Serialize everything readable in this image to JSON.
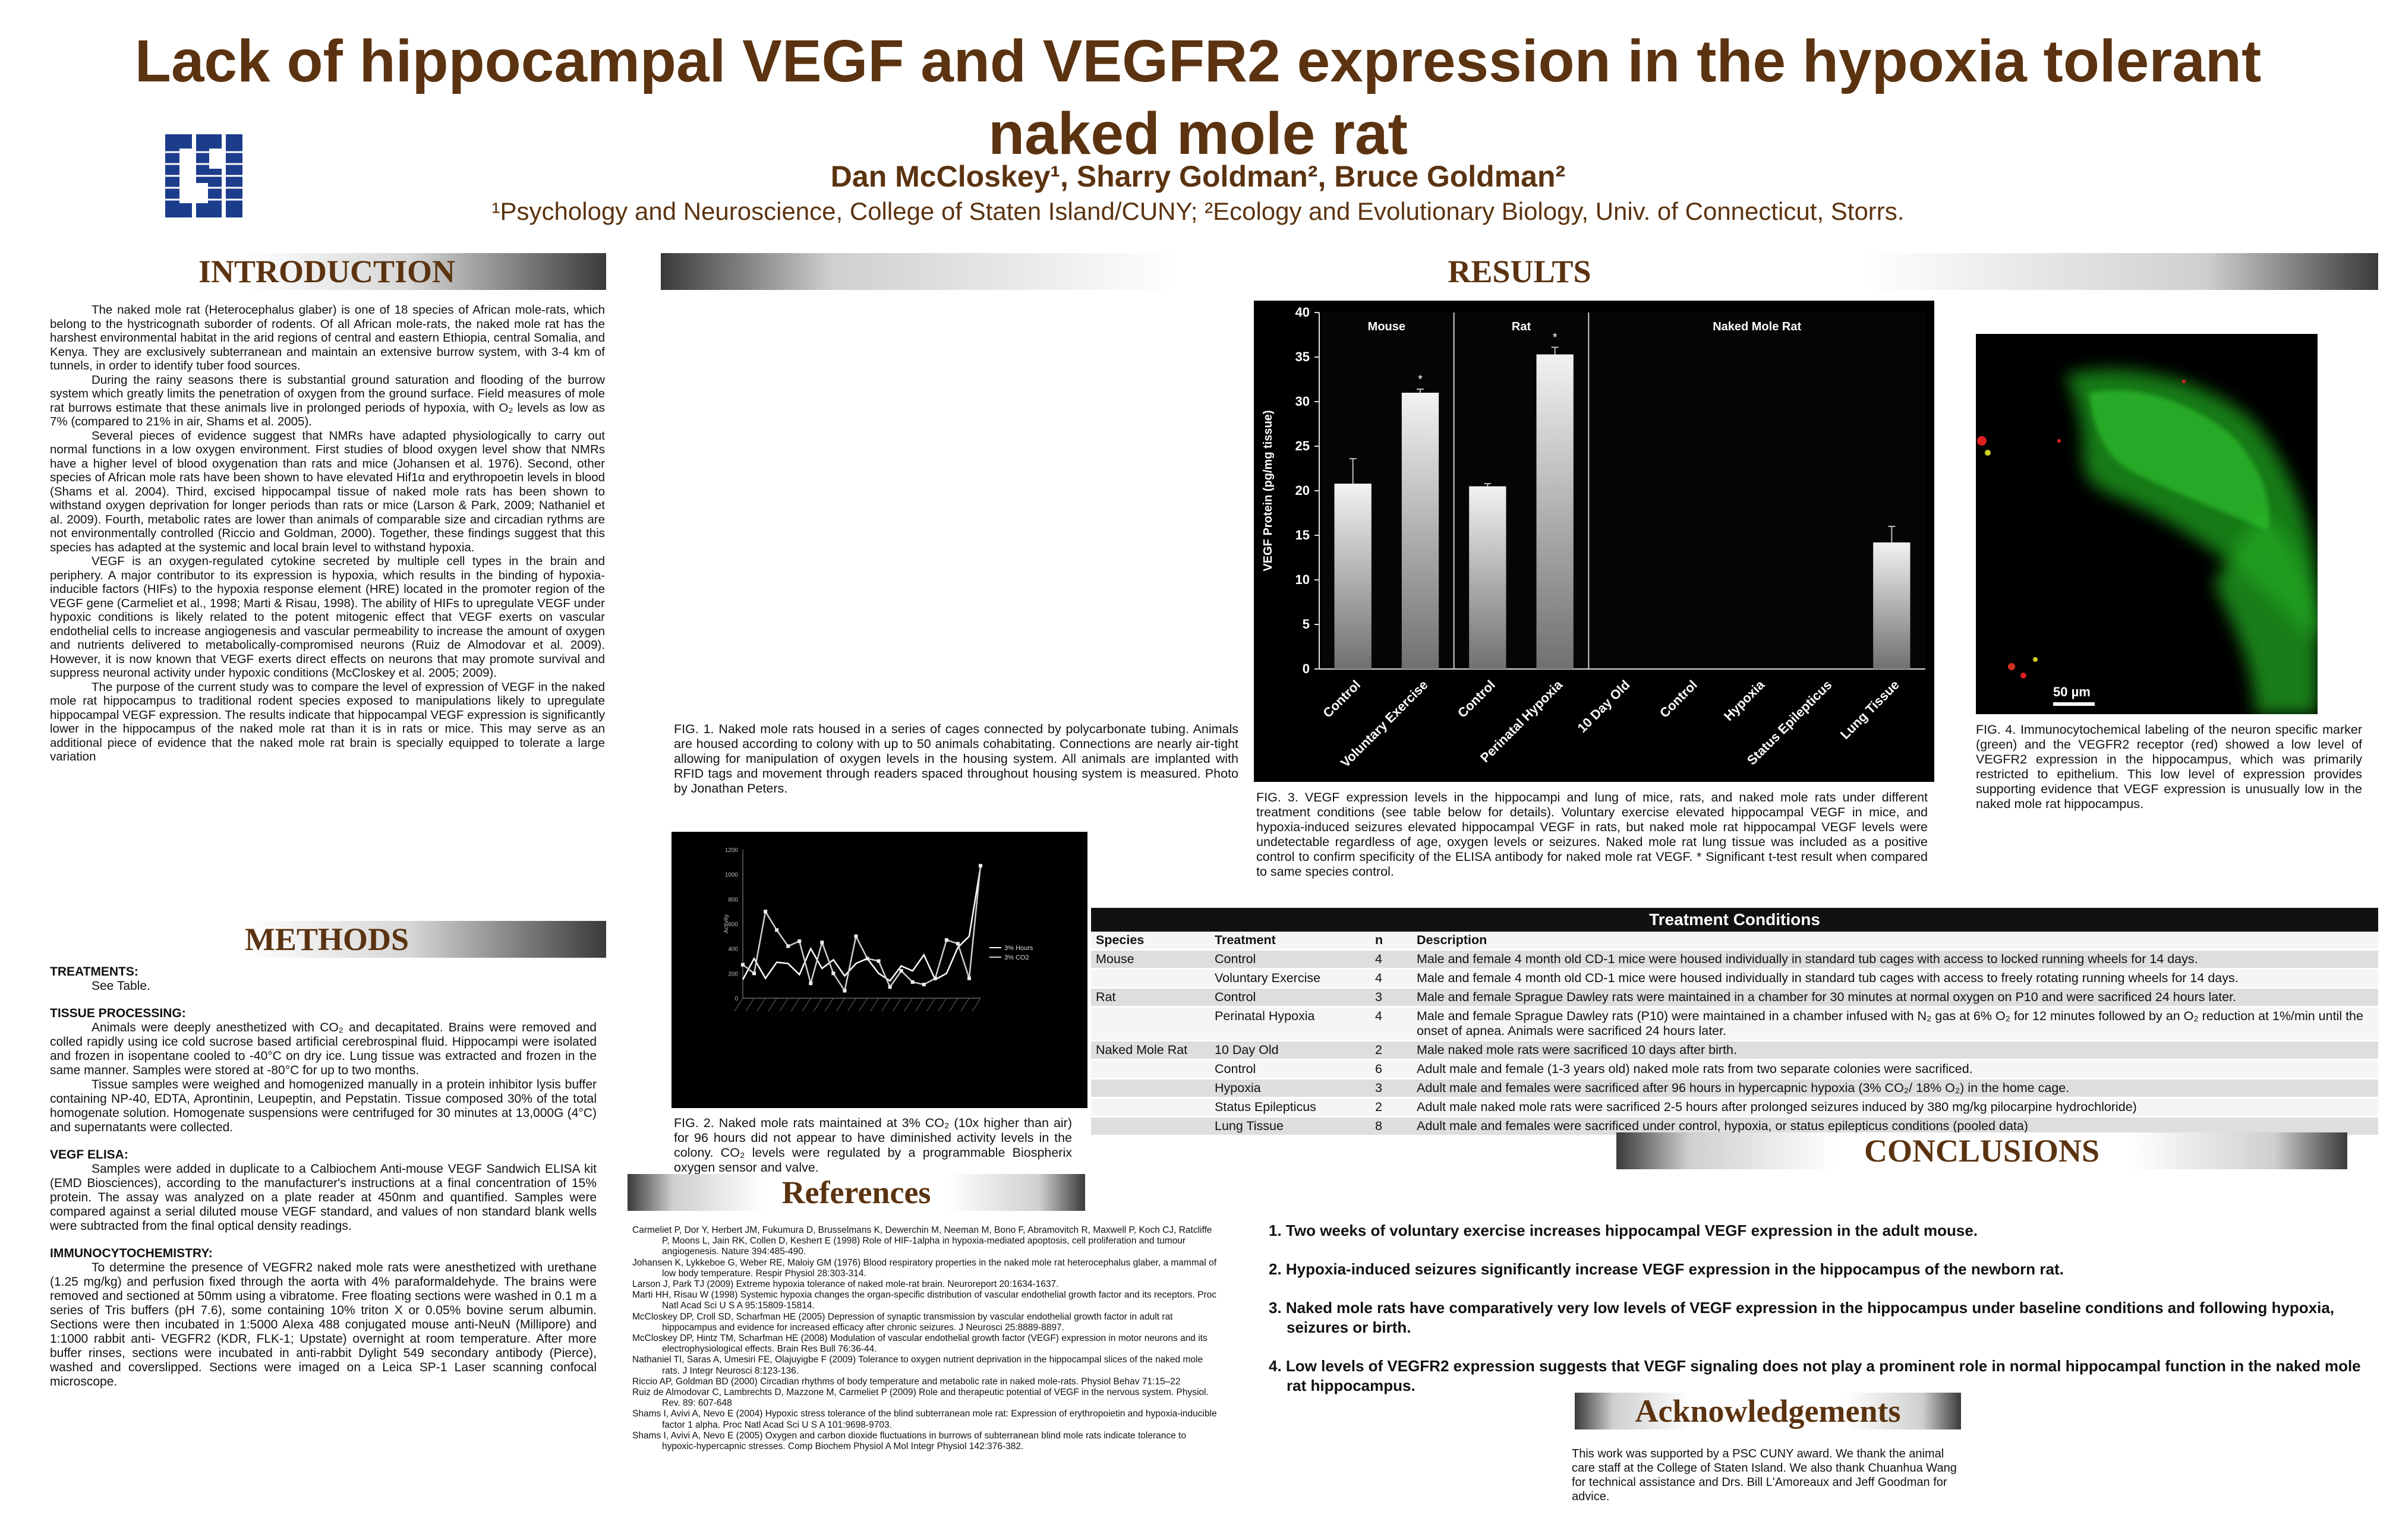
{
  "header": {
    "title_line1": "Lack of hippocampal VEGF and VEGFR2 expression in the hypoxia tolerant",
    "title_line2": "naked mole rat",
    "authors": "Dan McCloskey¹, Sharry Goldman², Bruce Goldman²",
    "affiliation": "¹Psychology and Neuroscience, College of Staten Island/CUNY; ²Ecology and Evolutionary Biology, Univ. of Connecticut, Storrs.",
    "logo_text": "CSI"
  },
  "sections": {
    "introduction": "INTRODUCTION",
    "methods": "METHODS",
    "results": "RESULTS",
    "references": "References",
    "conclusions": "CONCLUSIONS",
    "acknowledgements": "Acknowledgements"
  },
  "introduction": {
    "p1": "The naked mole rat (Heterocephalus glaber) is one of 18 species of African mole-rats, which belong to the hystricognath suborder of rodents. Of all African mole-rats, the naked mole rat has the harshest environmental habitat in the arid regions of central and eastern Ethiopia, central Somalia, and Kenya. They are exclusively subterranean and maintain an extensive burrow system, with 3-4 km of tunnels, in order to identify tuber food sources.",
    "p2": "During the rainy seasons there is substantial ground saturation and flooding of the burrow system which greatly limits the penetration of oxygen from the ground surface. Field measures of mole rat burrows estimate that these animals live in prolonged periods of hypoxia, with O₂ levels as low as 7% (compared to 21% in air, Shams et al. 2005).",
    "p3": "Several pieces of evidence suggest that NMRs have adapted physiologically to carry out normal functions in a low oxygen environment. First studies of blood oxygen level show that NMRs have a higher level of blood oxygenation than rats and mice (Johansen et al. 1976). Second, other species of African mole rats have been shown to have elevated Hif1α and erythropoetin levels in blood (Shams et al. 2004). Third, excised hippocampal tissue of naked mole rats has been shown to withstand oxygen deprivation for longer periods than rats or mice (Larson & Park, 2009; Nathaniel et al. 2009). Fourth, metabolic rates are lower than animals of comparable size and circadian rythms are not environmentally controlled (Riccio and Goldman, 2000). Together, these findings suggest that this species has adapted at the systemic and local brain level to withstand hypoxia.",
    "p4": "VEGF is an oxygen-regulated cytokine secreted by multiple cell types in the brain and periphery. A major contributor to its expression is hypoxia, which results in the binding of hypoxia-inducible factors (HIFs) to the hypoxia response element (HRE) located in the promoter region of the VEGF gene (Carmeliet et al., 1998; Marti & Risau, 1998). The ability of HIFs to upregulate VEGF under hypoxic conditions is likely related to the potent mitogenic effect that VEGF exerts on vascular endothelial cells to increase angiogenesis and vascular permeability to increase the amount of oxygen and nutrients delivered to metabolically-compromised neurons (Ruiz de Almodovar et al. 2009). However, it is now known that VEGF exerts direct effects on neurons that may promote survival and suppress neuronal activity under hypoxic conditions (McCloskey et al. 2005; 2009).",
    "p5": "The purpose of the current study was to compare the level of expression of VEGF in the naked mole rat hippocampus to traditional rodent species exposed to manipulations likely to upregulate hippocampal VEGF expression. The results indicate that hippocampal VEGF expression is significantly lower in the hippocampus of the naked mole rat than it is in rats or mice. This may serve as an additional piece of evidence that the naked mole rat brain is specially equipped to tolerate a large variation"
  },
  "methods": {
    "treat_h": "TREATMENTS:",
    "treat_p": "See Table.",
    "tissue_h": "TISSUE PROCESSING:",
    "tissue_p1": "Animals were deeply anesthetized with CO₂ and decapitated. Brains were removed and colled rapidly using ice cold sucrose based artificial cerebrospinal fluid. Hippocampi were isolated and frozen in isopentane cooled to -40°C on dry ice. Lung tissue was extracted and frozen in the same manner. Samples were stored at -80°C for up to two months.",
    "tissue_p2": "Tissue samples were weighed and homogenized manually in a protein inhibitor lysis buffer containing NP-40, EDTA, Aprontinin, Leupeptin, and Pepstatin. Tissue composed 30% of the total homogenate solution. Homogenate suspensions were centrifuged for 30 minutes at 13,000G (4°C) and supernatants were collected.",
    "elisa_h": "VEGF ELISA:",
    "elisa_p": "Samples were added in duplicate to a Calbiochem Anti-mouse VEGF Sandwich ELISA kit (EMD Biosciences), according to the manufacturer's instructions at a final concentration of 15% protein. The assay was analyzed on a plate reader at 450nm and quantified. Samples were compared against a serial diluted mouse VEGF standard, and values of non standard blank wells were subtracted from the final optical density readings.",
    "ihc_h": "IMMUNOCYTOCHEMISTRY:",
    "ihc_p": "To determine the presence of VEGFR2 naked mole rats were anesthetized with urethane (1.25 mg/kg) and perfusion fixed through the aorta with 4% paraformaldehyde. The brains were removed and sectioned at 50mm using a vibratome. Free floating sections were washed in 0.1 m a series of Tris buffers (pH 7.6), some containing 10% triton X or 0.05% bovine serum albumin. Sections were then incubated in 1:5000 Alexa 488 conjugated mouse anti-NeuN (Millipore) and 1:1000 rabbit anti- VEGFR2 (KDR, FLK-1; Upstate) overnight at room temperature. After more buffer rinses, sections were incubated in anti-rabbit Dylight 549 secondary antibody (Pierce), washed and coverslipped. Sections were imaged on a Leica SP-1 Laser scanning confocal microscope."
  },
  "figures": {
    "fig1": "FIG. 1. Naked mole rats housed in a series of cages connected by polycarbonate tubing. Animals are housed according to colony with up to 50 animals cohabitating. Connections are nearly air-tight allowing for manipulation of oxygen levels in the housing system. All animals are implanted with RFID tags and movement through readers spaced throughout housing system is measured. Photo by Jonathan Peters.",
    "fig2": "FIG. 2. Naked mole rats maintained at 3% CO₂ (10x higher than air) for 96 hours did not appear to have diminished activity levels in the colony. CO₂ levels were regulated by a programmable Biospherix oxygen sensor and valve.",
    "fig3": "FIG. 3. VEGF expression levels in the hippocampi and lung of mice, rats, and naked mole rats under different treatment conditions (see table below for details). Voluntary exercise elevated hippocampal VEGF in mice, and hypoxia-induced seizures elevated hippocampal VEGF in rats, but naked mole rat hippocampal VEGF levels were undetectable regardless of age, oxygen levels or seizures. Naked mole rat lung tissue was included as a positive control to confirm specificity of the ELISA antibody for naked mole rat VEGF. * Significant t-test result when compared to same species control.",
    "fig4": "FIG. 4. Immunocytochemical labeling of the neuron specific marker (green) and the VEGFR2 receptor (red) showed a low level of VEGFR2 expression in the hippocampus, which was primarily restricted to epithelium. This low level of expression provides supporting evidence that VEGF expression is unusually low in the naked mole rat hippocampus.",
    "scale_bar": "50 µm"
  },
  "chart_data": [
    {
      "type": "bar",
      "ylabel": "VEGF Protein (pg/mg tissue)",
      "ylim": [
        0,
        40
      ],
      "yticks": [
        0,
        5,
        10,
        15,
        20,
        25,
        30,
        35,
        40
      ],
      "groups": [
        "Mouse",
        "Rat",
        "Naked Mole Rat"
      ],
      "categories": [
        "Control",
        "Voluntary Exercise",
        "Control",
        "Perinatal Hypoxia",
        "10 Day Old",
        "Control",
        "Hypoxia",
        "Status Epilepticus",
        "Lung Tissue"
      ],
      "values": [
        20.8,
        31.0,
        20.5,
        35.3,
        0,
        0,
        0,
        0,
        14.2
      ],
      "errors": [
        2.8,
        0.4,
        0.3,
        0.8,
        0,
        0,
        0,
        0,
        1.8
      ],
      "significant": [
        false,
        true,
        false,
        true,
        false,
        false,
        false,
        false,
        false
      ],
      "grid": false
    },
    {
      "type": "line",
      "ylabel": "Activity",
      "yticks": [
        0,
        200,
        400,
        600,
        800,
        1000,
        1200
      ],
      "ylim": [
        0,
        1200
      ],
      "series": [
        {
          "name": "3% Hours",
          "values": [
            150,
            320,
            160,
            290,
            280,
            190,
            400,
            240,
            310,
            180,
            280,
            320,
            200,
            140,
            260,
            220,
            350,
            150,
            200,
            410,
            500,
            1060
          ]
        },
        {
          "name": "3% CO2",
          "values": [
            270,
            200,
            700,
            550,
            420,
            460,
            120,
            450,
            200,
            60,
            500,
            320,
            300,
            90,
            220,
            130,
            110,
            160,
            470,
            440,
            160,
            1070
          ]
        }
      ],
      "grid": false
    }
  ],
  "table": {
    "title": "Treatment Conditions",
    "headers": [
      "Species",
      "Treatment",
      "n",
      "Description"
    ],
    "rows": [
      [
        "Mouse",
        "Control",
        "4",
        "Male and female 4 month old CD-1 mice were housed individually in standard tub cages with access to locked running wheels for 14 days."
      ],
      [
        "",
        "Voluntary Exercise",
        "4",
        "Male and female 4 month old CD-1 mice were housed individually in standard tub cages with access to freely rotating running wheels for 14 days."
      ],
      [
        "Rat",
        "Control",
        "3",
        "Male and female Sprague Dawley rats were maintained in a chamber for 30 minutes at normal oxygen on P10 and were sacrificed 24 hours later."
      ],
      [
        "",
        "Perinatal Hypoxia",
        "4",
        "Male and female Sprague Dawley rats (P10) were maintained in a chamber infused with N₂ gas at 6% O₂ for 12 minutes followed by an O₂ reduction at 1%/min until the onset of apnea. Animals were sacrificed 24 hours later."
      ],
      [
        "Naked Mole Rat",
        "10 Day Old",
        "2",
        "Male naked mole rats were sacrificed 10 days after birth."
      ],
      [
        "",
        "Control",
        "6",
        "Adult male and female (1-3 years old) naked mole rats from two separate colonies were sacrificed."
      ],
      [
        "",
        "Hypoxia",
        "3",
        "Adult male and females were sacrificed after 96 hours in hypercapnic hypoxia (3% CO₂/ 18% O₂) in the home cage."
      ],
      [
        "",
        "Status Epilepticus",
        "2",
        "Adult male naked mole rats were sacrificed 2-5 hours after prolonged seizures induced by 380 mg/kg pilocarpine hydrochloride)"
      ],
      [
        "",
        "Lung Tissue",
        "8",
        "Adult male and females were sacrificed under control, hypoxia, or status epilepticus conditions (pooled data)"
      ]
    ]
  },
  "references": [
    "Carmeliet P, Dor Y, Herbert JM, Fukumura D, Brusselmans K, Dewerchin M, Neeman M, Bono F, Abramovitch R, Maxwell P, Koch CJ, Ratcliffe P, Moons L, Jain RK, Collen D, Keshert E (1998) Role of HIF-1alpha in hypoxia-mediated apoptosis, cell proliferation and tumour angiogenesis. Nature 394:485-490.",
    "Johansen K, Lykkeboe G, Weber RE, Maloiy GM (1976) Blood respiratory properties in the naked mole rat heterocephalus glaber, a mammal of low body temperature. Respir Physiol 28:303-314.",
    "Larson J, Park TJ (2009) Extreme hypoxia tolerance of naked mole-rat brain. Neuroreport 20:1634-1637.",
    "Marti HH, Risau W (1998) Systemic hypoxia changes the organ-specific distribution of vascular endothelial growth factor and its receptors. Proc Natl Acad Sci U S A 95:15809-15814.",
    "McCloskey DP, Croll SD, Scharfman HE (2005) Depression of synaptic transmission by vascular endothelial growth factor in adult rat hippocampus and evidence for increased efficacy after chronic seizures. J Neurosci 25:8889-8897.",
    "McCloskey DP, Hintz TM, Scharfman HE (2008) Modulation of vascular endothelial growth factor (VEGF) expression in motor neurons and its electrophysiological effects. Brain Res Bull 76:36-44.",
    "Nathaniel TI, Saras A, Umesiri FE, Olajuyigbe F (2009) Tolerance to oxygen nutrient deprivation in the hippocampal slices of the naked mole rats. J Integr Neurosci 8:123-136.",
    "Riccio AP, Goldman BD (2000) Circadian rhythms of body temperature and metabolic rate in naked mole-rats. Physiol Behav 71:15–22",
    "Ruiz de Almodovar C, Lambrechts D, Mazzone M, Carmeliet P (2009) Role and therapeutic potential of VEGF in the nervous system. Physiol. Rev. 89: 607-648",
    "Shams I, Avivi A, Nevo E (2004) Hypoxic stress tolerance of the blind subterranean mole rat: Expression of erythropoietin and hypoxia-inducible factor 1 alpha. Proc Natl Acad Sci U S A 101:9698-9703.",
    "Shams I, Avivi A, Nevo E (2005) Oxygen and carbon dioxide fluctuations in burrows of subterranean blind mole rats indicate tolerance to hypoxic-hypercapnic stresses. Comp Biochem Physiol A Mol Integr Physiol 142:376-382."
  ],
  "conclusions": [
    "1. Two weeks of voluntary exercise increases hippocampal VEGF expression in the adult mouse.",
    "2. Hypoxia-induced seizures significantly increase VEGF expression in the hippocampus of the newborn rat.",
    "3. Naked mole rats have comparatively very low levels of VEGF expression in the hippocampus under baseline conditions and following hypoxia, seizures or birth.",
    "4. Low levels of VEGFR2 expression suggests that VEGF signaling does not play a prominent role in normal hippocampal function in the naked mole rat hippocampus."
  ],
  "acknowledgements": "This work was supported by a PSC CUNY award. We thank the animal care staff at the College of Staten Island. We also thank Chuanhua Wang for technical assistance and Drs. Bill L'Amoreaux and Jeff Goodman for advice.",
  "colors": {
    "title": "#5b3310",
    "logo": "#1c3c8c",
    "green_cells": "#2ecc2e",
    "bar_fill": "#d9d9d9"
  }
}
